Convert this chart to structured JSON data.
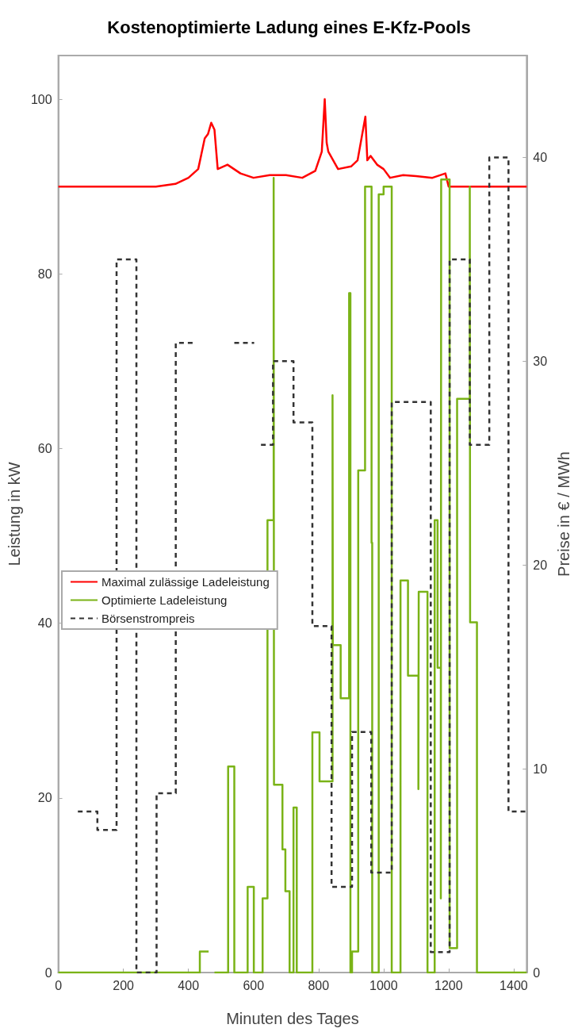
{
  "chart_data": {
    "type": "step",
    "title": "Kostenoptimierte Ladung eines E-Kfz-Pools",
    "xlabel": "Minuten des Tages",
    "ylabel": "Leistung in kW",
    "y2label": "Preise in € / MWh",
    "xlim": [
      0,
      1440
    ],
    "xticks": [
      0,
      200,
      400,
      600,
      800,
      1000,
      1200,
      1400
    ],
    "ylim": [
      0,
      105
    ],
    "yticks": [
      0,
      20,
      40,
      60,
      80,
      100
    ],
    "y2lim": [
      0,
      45
    ],
    "y2ticks": [
      0,
      10,
      20,
      30,
      40
    ],
    "grid": false,
    "legend": "left",
    "line_style": "solid",
    "series": [
      {
        "name": "Maximal zulässige Ladeleistung",
        "type": "line",
        "color": "#ff0000",
        "x": [
          0,
          300,
          360,
          400,
          430,
          450,
          460,
          470,
          480,
          490,
          520,
          560,
          600,
          650,
          700,
          750,
          790,
          810,
          819,
          825,
          830,
          860,
          900,
          920,
          944,
          950,
          960,
          980,
          1000,
          1020,
          1060,
          1100,
          1150,
          1190,
          1200,
          1440
        ],
        "values": [
          90,
          90,
          90.3,
          91,
          92,
          95.5,
          96,
          97.3,
          96.5,
          92,
          92.5,
          91.5,
          91,
          91.3,
          91.3,
          91,
          91.8,
          94,
          100,
          95,
          94,
          92,
          92.3,
          93,
          98,
          93,
          93.5,
          92.5,
          92,
          91,
          91.3,
          91.2,
          91,
          91.5,
          90,
          90
        ]
      },
      {
        "name": "Optimierte Ladeleistung",
        "color": "#7ab317",
        "x": [
          0,
          435,
          462,
          463,
          480,
          522,
          541,
          582,
          601,
          628,
          643,
          662,
          663,
          689,
          698,
          711,
          723,
          733,
          781,
          803,
          843,
          844,
          868,
          894,
          898,
          903,
          922,
          943,
          963,
          965,
          985,
          1000,
          1025,
          1052,
          1075,
          1107,
          1108,
          1135,
          1157,
          1166,
          1176,
          1177,
          1203,
          1226,
          1265,
          1266,
          1287,
          1440
        ],
        "values": [
          0,
          2.4,
          2.4,
          null,
          0,
          23.6,
          0,
          9.8,
          0,
          8.5,
          51.8,
          91,
          21.5,
          14.1,
          9.3,
          0,
          18.9,
          0,
          27.5,
          21.9,
          66.1,
          37.5,
          31.4,
          77.8,
          0,
          2.4,
          57.5,
          90,
          49.2,
          0,
          89.1,
          90,
          0,
          44.9,
          34,
          21,
          43.6,
          0,
          51.8,
          34.9,
          8.5,
          90.8,
          2.8,
          65.7,
          90,
          40.1,
          0,
          0
        ]
      },
      {
        "name": "Börsenstrompreis",
        "color": "#333333",
        "axis": "y2",
        "line_style": "dashed",
        "x": [
          60,
          120,
          179,
          240,
          302,
          361,
          418,
          419,
          541,
          602,
          603,
          623,
          660,
          723,
          781,
          840,
          903,
          962,
          1025,
          1145,
          1203,
          1265,
          1325,
          1384,
          1440
        ],
        "values": [
          7.9,
          7,
          35,
          0,
          8.8,
          30.9,
          30.9,
          null,
          30.9,
          30.9,
          null,
          25.9,
          30,
          27,
          17,
          4.2,
          11.8,
          4.9,
          28,
          1,
          35,
          25.9,
          40,
          7.9,
          7.9
        ]
      }
    ]
  }
}
